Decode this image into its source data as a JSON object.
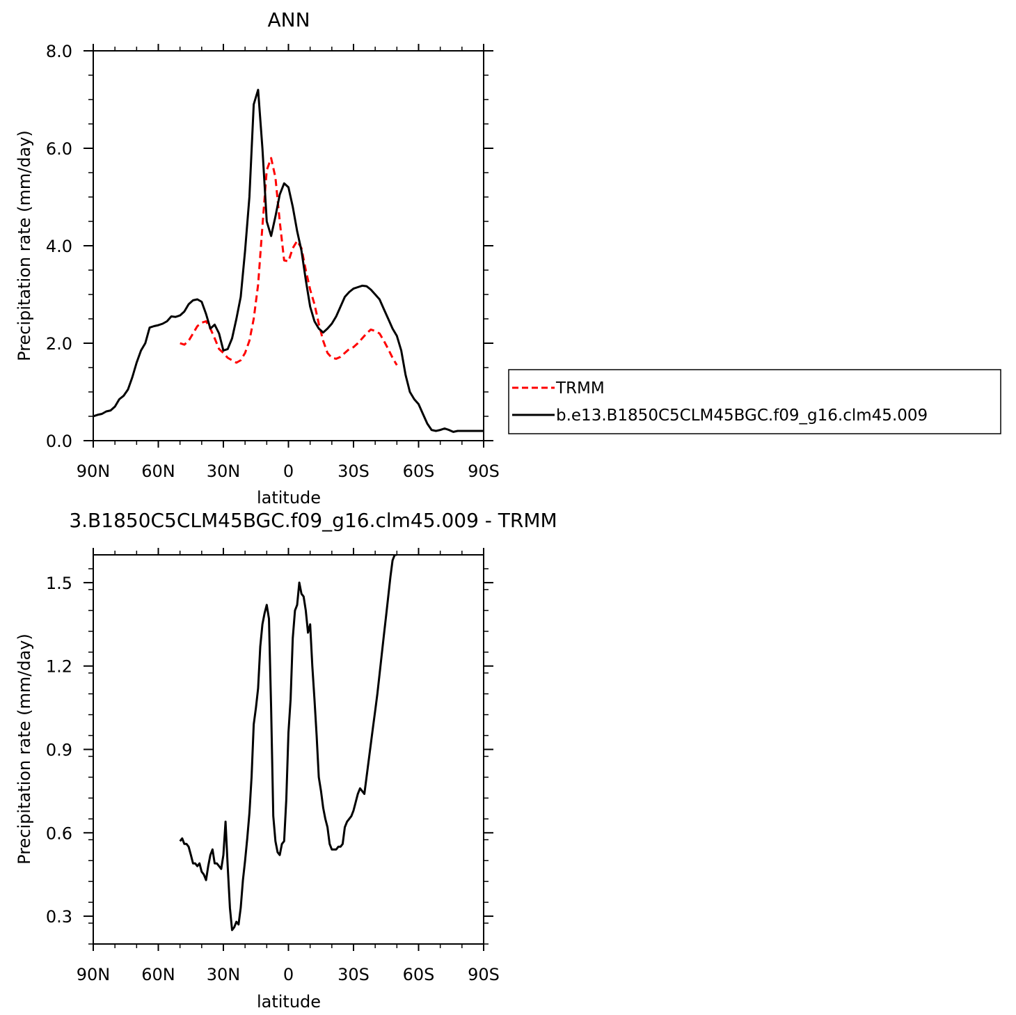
{
  "chart_data": [
    {
      "type": "line",
      "title": "ANN",
      "xlabel": "latitude",
      "ylabel": "Precipitation rate (mm/day)",
      "xlim": [
        90,
        -90
      ],
      "ylim": [
        0,
        8
      ],
      "x_tick_values": [
        90,
        60,
        30,
        0,
        -30,
        -60,
        -90
      ],
      "x_tick_labels": [
        "90N",
        "60N",
        "30N",
        "0",
        "30S",
        "60S",
        "90S"
      ],
      "y_tick_values": [
        0,
        2,
        4,
        6,
        8
      ],
      "y_tick_labels": [
        "0.0",
        "2.0",
        "4.0",
        "6.0",
        "8.0"
      ],
      "grid": false,
      "legend_position": "right",
      "series": [
        {
          "name": "TRMM",
          "color": "#ff0000",
          "dash": "dashed",
          "x": [
            50,
            48,
            46,
            44,
            42,
            40,
            38,
            36,
            34,
            32,
            30,
            28,
            26,
            24,
            22,
            20,
            18,
            16,
            14,
            12,
            10,
            8,
            6,
            4,
            2,
            0,
            -2,
            -4,
            -6,
            -8,
            -10,
            -12,
            -14,
            -16,
            -18,
            -20,
            -22,
            -24,
            -26,
            -28,
            -30,
            -32,
            -34,
            -36,
            -38,
            -40,
            -42,
            -44,
            -46,
            -48,
            -50
          ],
          "y": [
            2.0,
            1.97,
            2.05,
            2.2,
            2.35,
            2.42,
            2.45,
            2.3,
            2.1,
            1.88,
            1.8,
            1.7,
            1.65,
            1.6,
            1.65,
            1.8,
            2.05,
            2.5,
            3.2,
            4.4,
            5.55,
            5.8,
            5.4,
            4.5,
            3.7,
            3.68,
            3.95,
            4.1,
            3.95,
            3.5,
            3.1,
            2.8,
            2.4,
            2.05,
            1.8,
            1.7,
            1.68,
            1.72,
            1.8,
            1.88,
            1.92,
            2.0,
            2.1,
            2.2,
            2.28,
            2.25,
            2.2,
            2.05,
            1.88,
            1.7,
            1.55
          ]
        },
        {
          "name": "b.e13.B1850C5CLM45BGC.f09_g16.clm45.009",
          "color": "#000000",
          "dash": "solid",
          "x": [
            90,
            88,
            86,
            84,
            82,
            80,
            78,
            76,
            74,
            72,
            70,
            68,
            66,
            64,
            62,
            60,
            58,
            56,
            54,
            52,
            50,
            48,
            46,
            44,
            42,
            40,
            38,
            36,
            34,
            32,
            30,
            28,
            26,
            24,
            22,
            20,
            18,
            16,
            14,
            12,
            10,
            8,
            6,
            4,
            2,
            0,
            -2,
            -4,
            -6,
            -8,
            -10,
            -12,
            -14,
            -16,
            -18,
            -20,
            -22,
            -24,
            -26,
            -28,
            -30,
            -32,
            -34,
            -36,
            -38,
            -40,
            -42,
            -44,
            -46,
            -48,
            -50,
            -52,
            -54,
            -56,
            -58,
            -60,
            -62,
            -64,
            -66,
            -68,
            -70,
            -72,
            -74,
            -76,
            -78,
            -80,
            -82,
            -84,
            -86,
            -88,
            -90
          ],
          "y": [
            0.5,
            0.53,
            0.55,
            0.6,
            0.62,
            0.7,
            0.85,
            0.92,
            1.05,
            1.3,
            1.6,
            1.85,
            2.0,
            2.32,
            2.35,
            2.37,
            2.4,
            2.45,
            2.55,
            2.54,
            2.57,
            2.65,
            2.8,
            2.88,
            2.9,
            2.85,
            2.6,
            2.3,
            2.38,
            2.2,
            1.85,
            1.88,
            2.1,
            2.5,
            2.95,
            3.9,
            5.0,
            6.9,
            7.2,
            6.0,
            4.5,
            4.2,
            4.6,
            5.05,
            5.28,
            5.2,
            4.8,
            4.3,
            3.9,
            3.3,
            2.75,
            2.45,
            2.3,
            2.22,
            2.3,
            2.4,
            2.55,
            2.75,
            2.95,
            3.05,
            3.12,
            3.15,
            3.18,
            3.17,
            3.1,
            3.0,
            2.9,
            2.7,
            2.5,
            2.3,
            2.15,
            1.85,
            1.35,
            1.0,
            0.85,
            0.75,
            0.55,
            0.35,
            0.22,
            0.2,
            0.22,
            0.25,
            0.22,
            0.18,
            0.2,
            0.2,
            0.2,
            0.2,
            0.2,
            0.2,
            0.2
          ]
        }
      ]
    },
    {
      "type": "line",
      "title": "3.B1850C5CLM45BGC.f09_g16.clm45.009 - TRMM",
      "xlabel": "latitude",
      "ylabel": "Precipitation rate (mm/day)",
      "xlim": [
        90,
        -90
      ],
      "ylim": [
        0.2,
        1.6
      ],
      "x_tick_values": [
        90,
        60,
        30,
        0,
        -30,
        -60,
        -90
      ],
      "x_tick_labels": [
        "90N",
        "60N",
        "30N",
        "0",
        "30S",
        "60S",
        "90S"
      ],
      "y_tick_values": [
        0.3,
        0.6,
        0.9,
        1.2,
        1.5
      ],
      "y_tick_labels": [
        "0.3",
        "0.6",
        "0.9",
        "1.2",
        "1.5"
      ],
      "grid": false,
      "series": [
        {
          "color": "#000000",
          "dash": "solid",
          "x": [
            50,
            49,
            48,
            47,
            46,
            45,
            44,
            43,
            42,
            41,
            40,
            39,
            38,
            37,
            36,
            35,
            34,
            33,
            32,
            31,
            30,
            29,
            28,
            27,
            26,
            25,
            24,
            23,
            22,
            21,
            20,
            19,
            18,
            17,
            16,
            15,
            14,
            13,
            12,
            11,
            10,
            9,
            8,
            7,
            6,
            5,
            4,
            3,
            2,
            1,
            0,
            -1,
            -2,
            -3,
            -4,
            -5,
            -6,
            -7,
            -8,
            -9,
            -10,
            -11,
            -12,
            -13,
            -14,
            -15,
            -16,
            -17,
            -18,
            -19,
            -20,
            -21,
            -22,
            -23,
            -24,
            -25,
            -26,
            -27,
            -28,
            -29,
            -30,
            -31,
            -32,
            -33,
            -34,
            -35,
            -36,
            -37,
            -38,
            -39,
            -40,
            -41,
            -42,
            -43,
            -44,
            -45,
            -46,
            -47,
            -48,
            -49,
            -50
          ],
          "y": [
            0.57,
            0.58,
            0.56,
            0.56,
            0.55,
            0.52,
            0.49,
            0.49,
            0.48,
            0.49,
            0.46,
            0.45,
            0.43,
            0.48,
            0.52,
            0.54,
            0.49,
            0.49,
            0.48,
            0.47,
            0.52,
            0.64,
            0.48,
            0.33,
            0.25,
            0.26,
            0.28,
            0.27,
            0.33,
            0.43,
            0.5,
            0.58,
            0.67,
            0.8,
            0.99,
            1.05,
            1.12,
            1.27,
            1.35,
            1.39,
            1.42,
            1.37,
            1.05,
            0.66,
            0.57,
            0.53,
            0.52,
            0.56,
            0.57,
            0.72,
            0.96,
            1.08,
            1.3,
            1.4,
            1.42,
            1.5,
            1.46,
            1.45,
            1.4,
            1.32,
            1.35,
            1.2,
            1.08,
            0.95,
            0.8,
            0.75,
            0.69,
            0.65,
            0.62,
            0.56,
            0.54,
            0.54,
            0.54,
            0.55,
            0.55,
            0.56,
            0.62,
            0.64,
            0.65,
            0.66,
            0.68,
            0.71,
            0.74,
            0.76,
            0.75,
            0.74,
            0.8,
            0.86,
            0.92,
            0.98,
            1.04,
            1.1,
            1.17,
            1.24,
            1.31,
            1.38,
            1.45,
            1.52,
            1.58,
            1.6,
            1.6
          ]
        }
      ]
    }
  ]
}
